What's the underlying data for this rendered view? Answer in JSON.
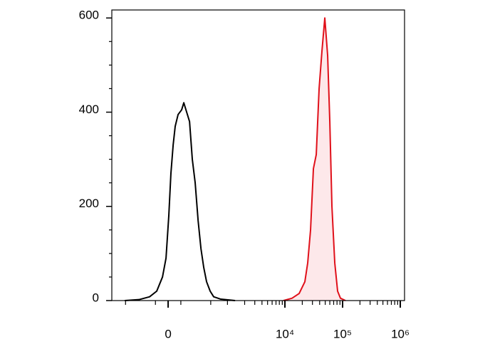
{
  "chart_data": {
    "type": "line",
    "xscale": "biexponential",
    "xlim": [
      -885,
      1185000
    ],
    "ylim": [
      0,
      617
    ],
    "xticks": [
      {
        "value": 0,
        "label": "0"
      },
      {
        "value": 10000,
        "label": "10⁴"
      },
      {
        "value": 100000,
        "label": "10⁵"
      },
      {
        "value": 1000000,
        "label": "10⁶"
      }
    ],
    "xminorticks": [
      -500,
      -100,
      100,
      500,
      1000,
      2000,
      3000,
      4000,
      5000,
      6000,
      7000,
      8000,
      9000,
      20000,
      30000,
      40000,
      50000,
      60000,
      70000,
      80000,
      90000,
      200000,
      300000,
      400000,
      500000,
      600000,
      700000,
      800000,
      900000
    ],
    "yticks": [
      0,
      200,
      400,
      600
    ],
    "yminorticks": [
      50,
      100,
      150,
      250,
      300,
      350,
      450,
      500,
      550
    ],
    "series": [
      {
        "color": "#000000",
        "fill": "none",
        "x": [
          -518,
          -273,
          -153,
          -89,
          -43,
          -16,
          5,
          21,
          38,
          54,
          77,
          107,
          126,
          153,
          182,
          212,
          246,
          284,
          325,
          369,
          418,
          488,
          567,
          762,
          1363
        ],
        "values": [
          0,
          2,
          8,
          20,
          50,
          90,
          180,
          270,
          330,
          370,
          395,
          405,
          420,
          400,
          380,
          300,
          250,
          170,
          110,
          70,
          40,
          20,
          8,
          3,
          0
        ]
      },
      {
        "color": "#e0101a",
        "fill": "#fde8ea",
        "x": [
          9450,
          13290,
          17650,
          22170,
          24830,
          27820,
          31180,
          34940,
          39140,
          43860,
          49140,
          55060,
          60000,
          65300,
          73150,
          81930,
          91850,
          112000
        ],
        "values": [
          0,
          5,
          15,
          40,
          80,
          150,
          280,
          310,
          450,
          530,
          600,
          520,
          380,
          200,
          80,
          20,
          5,
          0
        ]
      }
    ]
  }
}
